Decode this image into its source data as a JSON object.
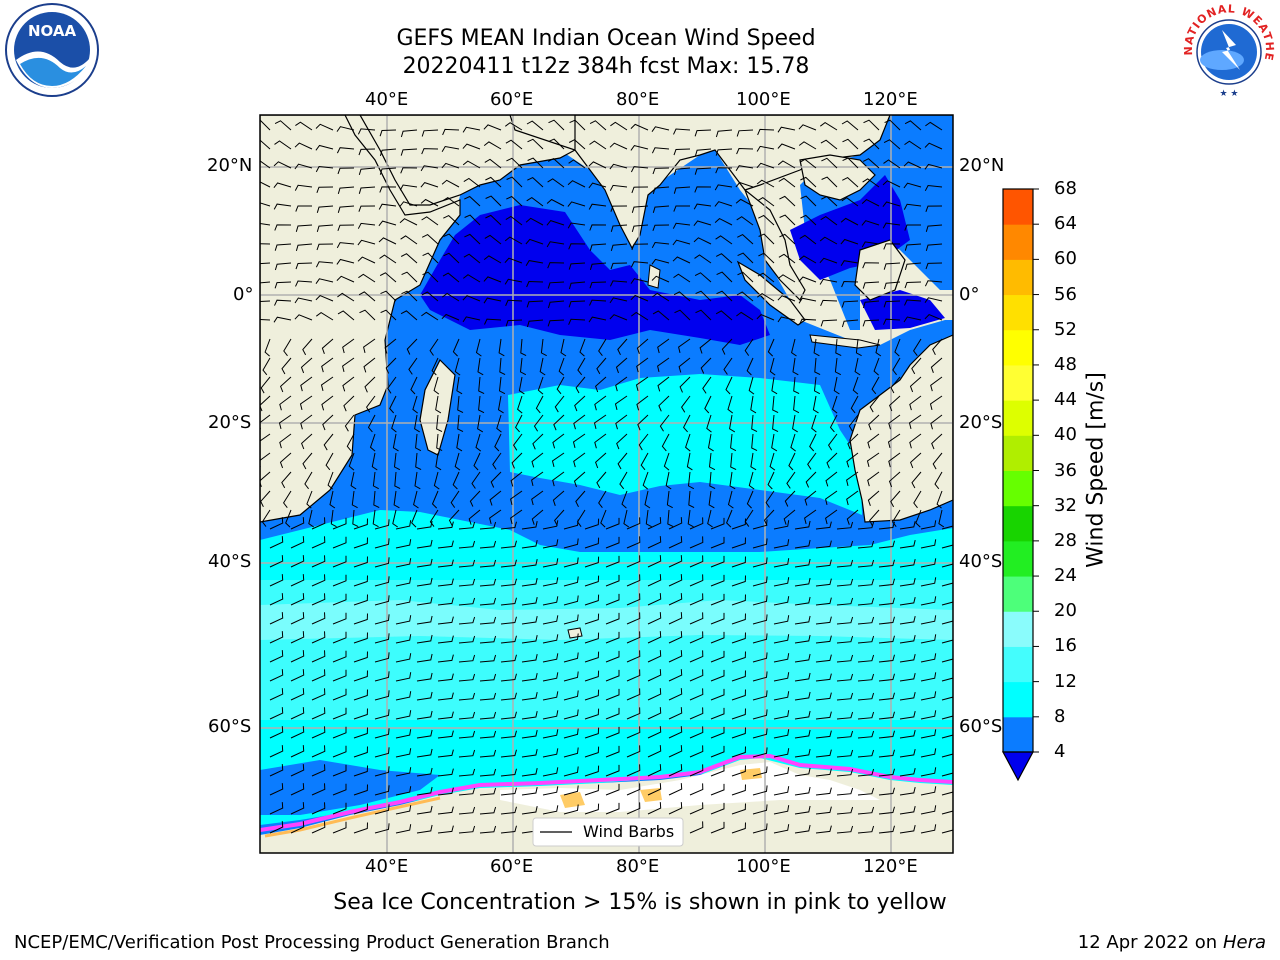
{
  "header": {
    "title_line1": "GEFS MEAN Indian Ocean Wind Speed",
    "title_line2": "20220411 t12z 384h fcst   Max: 15.78"
  },
  "map": {
    "lon_ticks_top": [
      "40°E",
      "60°E",
      "80°E",
      "100°E",
      "120°E"
    ],
    "lon_ticks_bottom": [
      "40°E",
      "60°E",
      "80°E",
      "100°E",
      "120°E"
    ],
    "lat_ticks_left": [
      "20°N",
      "0°",
      "20°S",
      "40°S",
      "60°S"
    ],
    "lat_ticks_right": [
      "20°N",
      "0°",
      "20°S",
      "40°S",
      "60°S"
    ],
    "legend_label": "Wind Barbs"
  },
  "colorbar": {
    "title": "Wind Speed [m/s]",
    "ticks": [
      "4",
      "8",
      "12",
      "16",
      "20",
      "24",
      "28",
      "32",
      "36",
      "40",
      "44",
      "48",
      "52",
      "56",
      "60",
      "64",
      "68"
    ],
    "colors": [
      "#0b7cff",
      "#00ffff",
      "#44fdfd",
      "#8afcfc",
      "#4dff7a",
      "#22ee22",
      "#18d400",
      "#66ff00",
      "#b0ee00",
      "#ddff00",
      "#ffff33",
      "#ffff00",
      "#ffe000",
      "#ffbb00",
      "#ff8800",
      "#ff5500",
      "#ff2200",
      "#ff0000"
    ],
    "under_color": "#0000ee"
  },
  "note": "Sea Ice Concentration > 15% is shown in pink to yellow",
  "footer": {
    "left": "NCEP/EMC/Verification Post Processing Product Generation Branch",
    "right_date": "12 Apr 2022 on",
    "right_host": "Hera"
  },
  "logos": {
    "noaa": "NOAA",
    "nws": "NATIONAL WEATHER SERVICE"
  }
}
